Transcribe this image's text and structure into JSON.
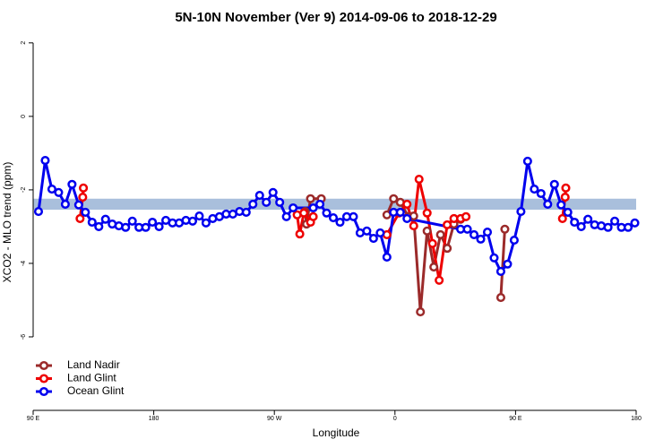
{
  "chart_data": {
    "type": "line",
    "title": "5N-10N November (Ver 9)   2014-09-06 to 2018-12-29",
    "xlabel": "Longitude",
    "ylabel": "XCO2 - MLO trend (ppm)",
    "xlim": [
      90,
      540
    ],
    "ylim": [
      -8,
      2.24
    ],
    "xticks": [
      {
        "value": 90,
        "label": "90 E"
      },
      180,
      {
        "value": 270,
        "label": "90 W"
      },
      {
        "value": 360,
        "label": "0"
      },
      {
        "value": 450,
        "label": "90 E"
      },
      {
        "value": 540,
        "label": "180"
      }
    ],
    "yticks": [
      2,
      0,
      -2,
      -4,
      -6
    ],
    "reference_band": {
      "ymin": -2.54,
      "ymax": -2.24,
      "color": "#a9bfdc"
    },
    "legend": "bottom-left",
    "series": [
      {
        "name": "Land Nadir",
        "color": "#9b2a2a",
        "x": [
          293,
          294,
          297,
          305,
          null,
          354,
          359,
          364,
          370,
          374,
          379,
          384,
          389,
          394,
          399,
          404,
          409,
          null,
          439,
          442
        ],
        "values": [
          -2.59,
          -2.93,
          -2.24,
          -2.24,
          null,
          -2.68,
          -2.24,
          -2.34,
          -2.73,
          -2.71,
          -5.32,
          -3.12,
          -4.1,
          -3.22,
          -3.59,
          -2.93,
          -2.8,
          null,
          -4.93,
          -3.07
        ]
      },
      {
        "name": "Land Glint",
        "color": "#ee0000",
        "x": [
          125,
          127,
          127.5,
          null,
          287,
          289,
          292,
          297,
          299,
          null,
          354,
          363,
          369,
          374,
          378,
          384,
          388,
          393,
          399,
          404,
          409,
          413,
          null,
          485,
          487,
          487.5
        ],
        "values": [
          -2.78,
          -2.2,
          -1.95,
          null,
          -2.68,
          -3.2,
          -2.63,
          -2.88,
          -2.73,
          null,
          -3.22,
          -2.63,
          -2.39,
          -2.98,
          -1.71,
          -2.63,
          -3.46,
          -4.46,
          -2.95,
          -2.78,
          -2.78,
          -2.73,
          null,
          -2.78,
          -2.2,
          -1.95
        ]
      },
      {
        "name": "Ocean Glint",
        "color": "#0000ee",
        "x": [
          94,
          99,
          104,
          109,
          114,
          119,
          124,
          129,
          134,
          139,
          144,
          149,
          154,
          159,
          164,
          169,
          174,
          179,
          184,
          189,
          194,
          199,
          204,
          209,
          214,
          219,
          224,
          229,
          234,
          239,
          244,
          249,
          254,
          259,
          264,
          269,
          274,
          279,
          284,
          299,
          304,
          309,
          314,
          319,
          324,
          329,
          334,
          339,
          344,
          349,
          354,
          359,
          364,
          369,
          409,
          414,
          419,
          424,
          429,
          434,
          439,
          444,
          449,
          454,
          459,
          464,
          469,
          474,
          479,
          484,
          489,
          494,
          499,
          504,
          509,
          514,
          519,
          524,
          529,
          534,
          539
        ],
        "values": [
          -2.59,
          -1.2,
          -1.98,
          -2.07,
          -2.39,
          -1.85,
          -2.41,
          -2.61,
          -2.88,
          -3.0,
          -2.8,
          -2.93,
          -2.98,
          -3.02,
          -2.85,
          -3.02,
          -3.02,
          -2.88,
          -3.0,
          -2.83,
          -2.9,
          -2.9,
          -2.83,
          -2.85,
          -2.71,
          -2.9,
          -2.78,
          -2.73,
          -2.66,
          -2.66,
          -2.59,
          -2.61,
          -2.39,
          -2.15,
          -2.34,
          -2.07,
          -2.34,
          -2.73,
          -2.49,
          -2.49,
          -2.39,
          -2.63,
          -2.76,
          -2.88,
          -2.73,
          -2.73,
          -3.17,
          -3.12,
          -3.32,
          -3.17,
          -3.83,
          -2.61,
          -2.61,
          -2.78,
          -3.07,
          -3.07,
          -3.22,
          -3.34,
          -3.15,
          -3.85,
          -4.22,
          -4.02,
          -3.37,
          -2.59,
          -1.22,
          -1.98,
          -2.1,
          -2.39,
          -1.85,
          -2.41,
          -2.61,
          -2.88,
          -3.0,
          -2.8,
          -2.95,
          -2.98,
          -3.02,
          -2.85,
          -3.02,
          -3.02,
          -2.9
        ]
      }
    ]
  }
}
